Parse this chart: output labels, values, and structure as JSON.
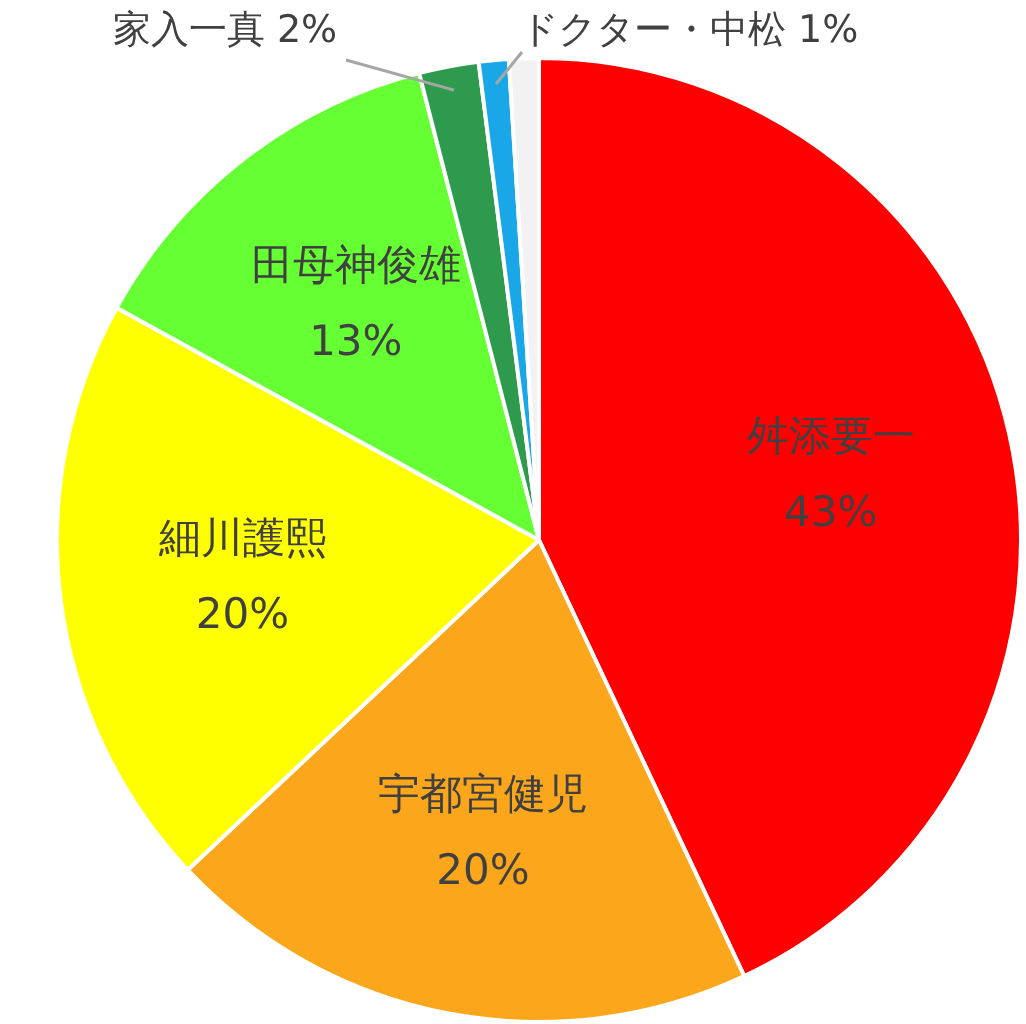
{
  "chart_data": {
    "type": "pie",
    "categories": [
      "舛添要一",
      "宇都宮健児",
      "細川護熙",
      "田母神俊雄",
      "家入一真",
      "ドクター・中松",
      null
    ],
    "values": [
      43,
      20,
      20,
      13,
      2,
      1,
      1
    ],
    "colors": [
      "#ff0000",
      "#fca61c",
      "#ffff00",
      "#66ff33",
      "#2e9a4e",
      "#1aa7e8",
      "#f2f2f2"
    ],
    "value_labels": [
      "43%",
      "20%",
      "20%",
      "13%",
      "2%",
      "1%",
      null
    ],
    "legend": false
  }
}
